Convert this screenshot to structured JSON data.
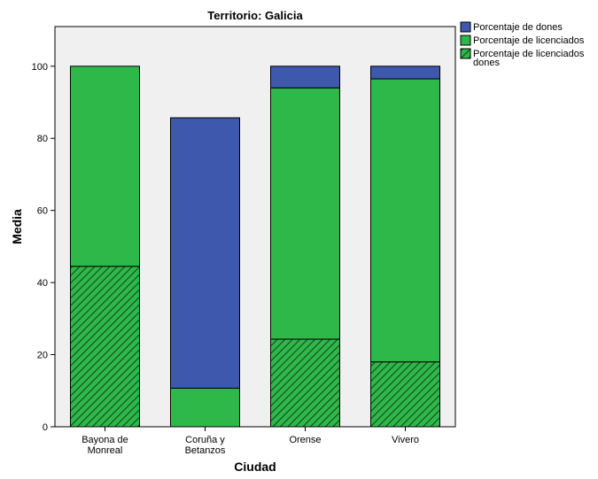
{
  "chart_data": {
    "type": "bar",
    "stacked": true,
    "title": "Territorio: Galicia",
    "xlabel": "Ciudad",
    "ylabel": "Media",
    "ylim": [
      0,
      111
    ],
    "yticks": [
      0,
      20,
      40,
      60,
      80,
      100
    ],
    "categories": [
      [
        "Bayona de",
        "Monreal"
      ],
      [
        "Coruña y",
        "Betanzos"
      ],
      [
        "Orense"
      ],
      [
        "Vivero"
      ]
    ],
    "series": [
      {
        "name": [
          "Porcentaje de licenciados",
          "dones"
        ],
        "color": "#2eb849",
        "pattern": "diagonal-hatch",
        "values": [
          44.5,
          0,
          24.3,
          18.0
        ]
      },
      {
        "name": [
          "Porcentaje de licenciados"
        ],
        "color": "#2eb849",
        "values": [
          55.5,
          10.7,
          69.7,
          78.5
        ]
      },
      {
        "name": [
          "Porcentaje de dones"
        ],
        "color": "#3d58ad",
        "values": [
          0,
          75.0,
          6.0,
          3.5
        ]
      }
    ],
    "legend_order": [
      2,
      1,
      0
    ],
    "legend_position": "right",
    "plot_background": "#f0f0f0",
    "grid": false
  }
}
